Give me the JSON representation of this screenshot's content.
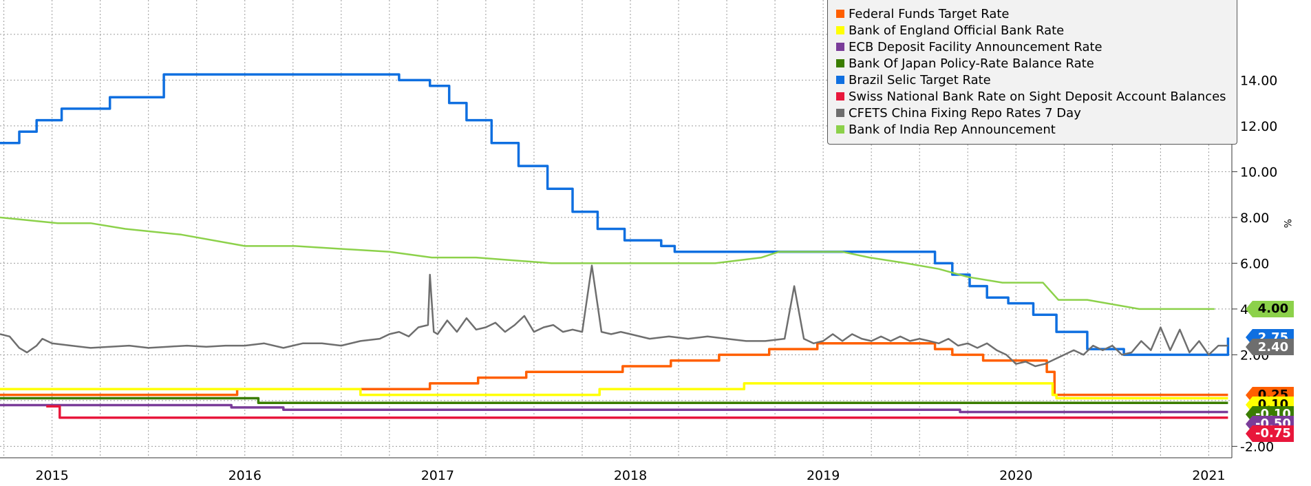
{
  "chart_data": {
    "type": "line",
    "title": "",
    "xlabel": "",
    "ylabel": "%",
    "xlim": [
      2014.73,
      2021.12
    ],
    "ylim": [
      -2.5,
      17.5
    ],
    "y_ticks": [
      14,
      12,
      10,
      8,
      6,
      4,
      2,
      -2
    ],
    "y_tick_labels": [
      "14.00",
      "12.00",
      "10.00",
      "8.00",
      "6.00",
      "4.00",
      "2.00",
      "-2.00"
    ],
    "x_tick_labels": [
      {
        "label": "2015",
        "x": 2015.0
      },
      {
        "label": "2016",
        "x": 2016.0
      },
      {
        "label": "2017",
        "x": 2017.0
      },
      {
        "label": "2018",
        "x": 2018.0
      },
      {
        "label": "2019",
        "x": 2019.0
      },
      {
        "label": "2020",
        "x": 2020.0
      },
      {
        "label": "2021",
        "x": 2021.0
      }
    ],
    "grid": true,
    "legend_position": "top-right",
    "series": [
      {
        "name": "Federal Funds Target Rate",
        "color": "#ff5f00",
        "step": true,
        "x": [
          2014.73,
          2015.96,
          2016.96,
          2017.21,
          2017.46,
          2017.96,
          2018.21,
          2018.46,
          2018.72,
          2018.97,
          2019.58,
          2019.67,
          2019.83,
          2020.16,
          2020.2,
          2021.1
        ],
        "y": [
          0.25,
          0.5,
          0.75,
          1.0,
          1.25,
          1.5,
          1.75,
          2.0,
          2.25,
          2.5,
          2.25,
          2.0,
          1.75,
          1.25,
          0.25,
          0.25
        ]
      },
      {
        "name": "Bank of England Official Bank Rate",
        "color": "#ffff00",
        "step": true,
        "x": [
          2014.73,
          2016.6,
          2017.84,
          2018.59,
          2020.19,
          2020.21,
          2021.1
        ],
        "y": [
          0.5,
          0.25,
          0.5,
          0.75,
          0.25,
          0.1,
          0.1
        ]
      },
      {
        "name": "ECB Deposit Facility Announcement Rate",
        "color": "#7a3c99",
        "step": true,
        "x": [
          2014.73,
          2015.5,
          2015.93,
          2016.19,
          2016.2,
          2019.71,
          2021.1
        ],
        "y": [
          -0.2,
          -0.2,
          -0.3,
          -0.3,
          -0.4,
          -0.5,
          -0.5
        ]
      },
      {
        "name": "Bank Of Japan Policy-Rate Balance Rate",
        "color": "#3a7d00",
        "step": true,
        "x": [
          2014.73,
          2016.07,
          2021.1
        ],
        "y": [
          0.1,
          -0.1,
          -0.1
        ]
      },
      {
        "name": "Brazil Selic Target Rate",
        "color": "#0f6fe0",
        "step": true,
        "x": [
          2014.73,
          2014.83,
          2014.92,
          2015.05,
          2015.3,
          2015.58,
          2016.8,
          2016.96,
          2017.06,
          2017.15,
          2017.28,
          2017.42,
          2017.57,
          2017.7,
          2017.83,
          2017.97,
          2018.16,
          2018.23,
          2019.58,
          2019.67,
          2019.76,
          2019.85,
          2019.96,
          2020.09,
          2020.21,
          2020.37,
          2020.47,
          2020.56,
          2020.61,
          2021.08,
          2021.1
        ],
        "y": [
          11.25,
          11.75,
          12.25,
          12.75,
          13.25,
          14.25,
          14.0,
          13.75,
          13.0,
          12.25,
          11.25,
          10.25,
          9.25,
          8.25,
          7.5,
          7.0,
          6.75,
          6.5,
          6.0,
          5.5,
          5.0,
          4.5,
          4.25,
          3.75,
          3.0,
          2.25,
          2.25,
          2.0,
          2.0,
          2.0,
          2.75
        ]
      },
      {
        "name": "Swiss National Bank Rate on Sight Deposit Account Balances",
        "color": "#e8173b",
        "step": true,
        "x": [
          2014.97,
          2015.04,
          2021.1
        ],
        "y": [
          -0.25,
          -0.75,
          -0.75
        ]
      },
      {
        "name": "CFETS China Fixing Repo Rates 7 Day",
        "color": "#6e6e6e",
        "step": false,
        "x": [
          2014.73,
          2014.78,
          2014.83,
          2014.87,
          2014.92,
          2014.95,
          2015.0,
          2015.1,
          2015.2,
          2015.3,
          2015.4,
          2015.5,
          2015.6,
          2015.7,
          2015.8,
          2015.9,
          2016.0,
          2016.1,
          2016.2,
          2016.3,
          2016.4,
          2016.5,
          2016.6,
          2016.7,
          2016.75,
          2016.8,
          2016.85,
          2016.9,
          2016.95,
          2016.96,
          2016.98,
          2017.0,
          2017.05,
          2017.1,
          2017.15,
          2017.2,
          2017.25,
          2017.3,
          2017.35,
          2017.4,
          2017.45,
          2017.5,
          2017.55,
          2017.6,
          2017.65,
          2017.7,
          2017.75,
          2017.8,
          2017.85,
          2017.9,
          2017.95,
          2018.0,
          2018.1,
          2018.2,
          2018.3,
          2018.4,
          2018.5,
          2018.6,
          2018.7,
          2018.8,
          2018.85,
          2018.9,
          2018.95,
          2019.0,
          2019.05,
          2019.1,
          2019.15,
          2019.2,
          2019.25,
          2019.3,
          2019.35,
          2019.4,
          2019.45,
          2019.5,
          2019.55,
          2019.6,
          2019.65,
          2019.7,
          2019.75,
          2019.8,
          2019.85,
          2019.9,
          2019.95,
          2020.0,
          2020.05,
          2020.1,
          2020.15,
          2020.2,
          2020.25,
          2020.3,
          2020.35,
          2020.4,
          2020.45,
          2020.5,
          2020.55,
          2020.6,
          2020.65,
          2020.7,
          2020.75,
          2020.8,
          2020.85,
          2020.9,
          2020.95,
          2021.0,
          2021.05,
          2021.1
        ],
        "y": [
          2.9,
          2.8,
          2.3,
          2.1,
          2.4,
          2.7,
          2.5,
          2.4,
          2.3,
          2.35,
          2.4,
          2.3,
          2.35,
          2.4,
          2.35,
          2.4,
          2.4,
          2.5,
          2.3,
          2.5,
          2.5,
          2.4,
          2.6,
          2.7,
          2.9,
          3.0,
          2.8,
          3.2,
          3.3,
          5.5,
          3.0,
          2.9,
          3.5,
          3.0,
          3.6,
          3.1,
          3.2,
          3.4,
          3.0,
          3.3,
          3.7,
          3.0,
          3.2,
          3.3,
          3.0,
          3.1,
          3.0,
          5.9,
          3.0,
          2.9,
          3.0,
          2.9,
          2.7,
          2.8,
          2.7,
          2.8,
          2.7,
          2.6,
          2.6,
          2.7,
          5.0,
          2.7,
          2.5,
          2.6,
          2.9,
          2.6,
          2.9,
          2.7,
          2.6,
          2.8,
          2.6,
          2.8,
          2.6,
          2.7,
          2.6,
          2.5,
          2.7,
          2.4,
          2.5,
          2.3,
          2.5,
          2.2,
          2.0,
          1.6,
          1.7,
          1.5,
          1.6,
          1.8,
          2.0,
          2.2,
          2.0,
          2.4,
          2.2,
          2.4,
          2.0,
          2.1,
          2.6,
          2.2,
          3.2,
          2.2,
          3.1,
          2.1,
          2.6,
          2.0,
          2.4,
          2.4
        ]
      },
      {
        "name": "Bank of India Rep Announcement",
        "color": "#8cd14a",
        "step": false,
        "x": [
          2014.73,
          2015.03,
          2015.2,
          2015.38,
          2015.67,
          2016.0,
          2016.26,
          2016.75,
          2016.97,
          2017.2,
          2017.59,
          2018.0,
          2018.44,
          2018.68,
          2018.77,
          2019.1,
          2019.24,
          2019.43,
          2019.6,
          2019.75,
          2019.93,
          2020.14,
          2020.22,
          2020.37,
          2020.64,
          2021.03
        ],
        "y": [
          8.0,
          7.75,
          7.75,
          7.5,
          7.25,
          6.75,
          6.75,
          6.5,
          6.25,
          6.25,
          6.0,
          6.0,
          6.0,
          6.25,
          6.5,
          6.5,
          6.25,
          6.0,
          5.75,
          5.4,
          5.15,
          5.15,
          4.4,
          4.4,
          4.0,
          4.0
        ]
      }
    ],
    "last_value_tags": [
      {
        "label": "4.00",
        "value": 4.0,
        "color": "#8cd14a"
      },
      {
        "label": "2.75",
        "value": 2.75,
        "color": "#0f6fe0"
      },
      {
        "label": "2.40",
        "value": 2.4,
        "color": "#6e6e6e"
      },
      {
        "label": "0.25",
        "value": 0.25,
        "color": "#ff5f00"
      },
      {
        "label": "0.10",
        "value": 0.1,
        "color": "#ffff00"
      },
      {
        "label": "-0.10",
        "value": -0.1,
        "color": "#3a7d00"
      },
      {
        "label": "-0.50",
        "value": -0.5,
        "color": "#7a3c99"
      },
      {
        "label": "-0.75",
        "value": -0.75,
        "color": "#e8173b"
      }
    ]
  }
}
